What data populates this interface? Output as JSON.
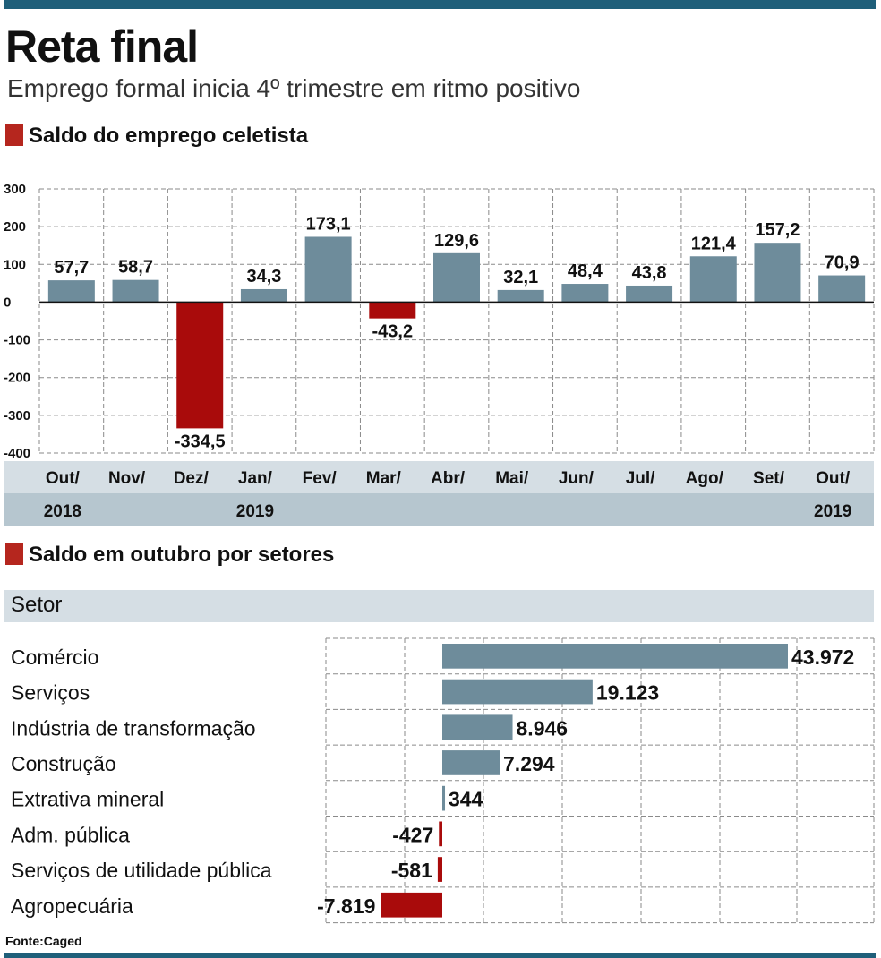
{
  "header": {
    "title": "Reta final",
    "subtitle": "Emprego formal inicia 4º trimestre em ritmo positivo"
  },
  "colors": {
    "positive": "#6e8c9b",
    "negative": "#a90b0b",
    "accent_bar": "#1f5f7a",
    "section_mark": "#b5261e"
  },
  "chart_data": [
    {
      "type": "bar",
      "title": "Saldo do emprego celetista",
      "categories": [
        "Out/",
        "Nov/",
        "Dez/",
        "Jan/",
        "Fev/",
        "Mar/",
        "Abr/",
        "Mai/",
        "Jun/",
        "Jul/",
        "Ago/",
        "Set/",
        "Out/"
      ],
      "year_labels": [
        "2018",
        "",
        "",
        "2019",
        "",
        "",
        "",
        "",
        "",
        "",
        "",
        "",
        "2019"
      ],
      "values": [
        57.7,
        58.7,
        -334.5,
        34.3,
        173.1,
        -43.2,
        129.6,
        32.1,
        48.4,
        43.8,
        121.4,
        157.2,
        70.9
      ],
      "value_labels": [
        "57,7",
        "58,7",
        "-334,5",
        "34,3",
        "173,1",
        "-43,2",
        "129,6",
        "32,1",
        "48,4",
        "43,8",
        "121,4",
        "157,2",
        "70,9"
      ],
      "yticks": [
        300,
        200,
        100,
        0,
        -100,
        -200,
        -300,
        -400
      ],
      "ylim": [
        -400,
        300
      ],
      "grid": true
    },
    {
      "type": "bar",
      "orientation": "horizontal",
      "title": "Saldo em outubro por setores",
      "column_header": "Setor",
      "categories": [
        "Comércio",
        "Serviços",
        "Indústria de transformação",
        "Construção",
        "Extrativa mineral",
        "Adm. pública",
        "Serviços de utilidade pública",
        "Agropecuária"
      ],
      "values": [
        43972,
        19123,
        8946,
        7294,
        344,
        -427,
        -581,
        -7819
      ],
      "value_labels": [
        "43.972",
        "19.123",
        "8.946",
        "7.294",
        "344",
        "-427",
        "-581",
        "-7.819"
      ],
      "grid": true
    }
  ],
  "source": "Fonte:Caged"
}
